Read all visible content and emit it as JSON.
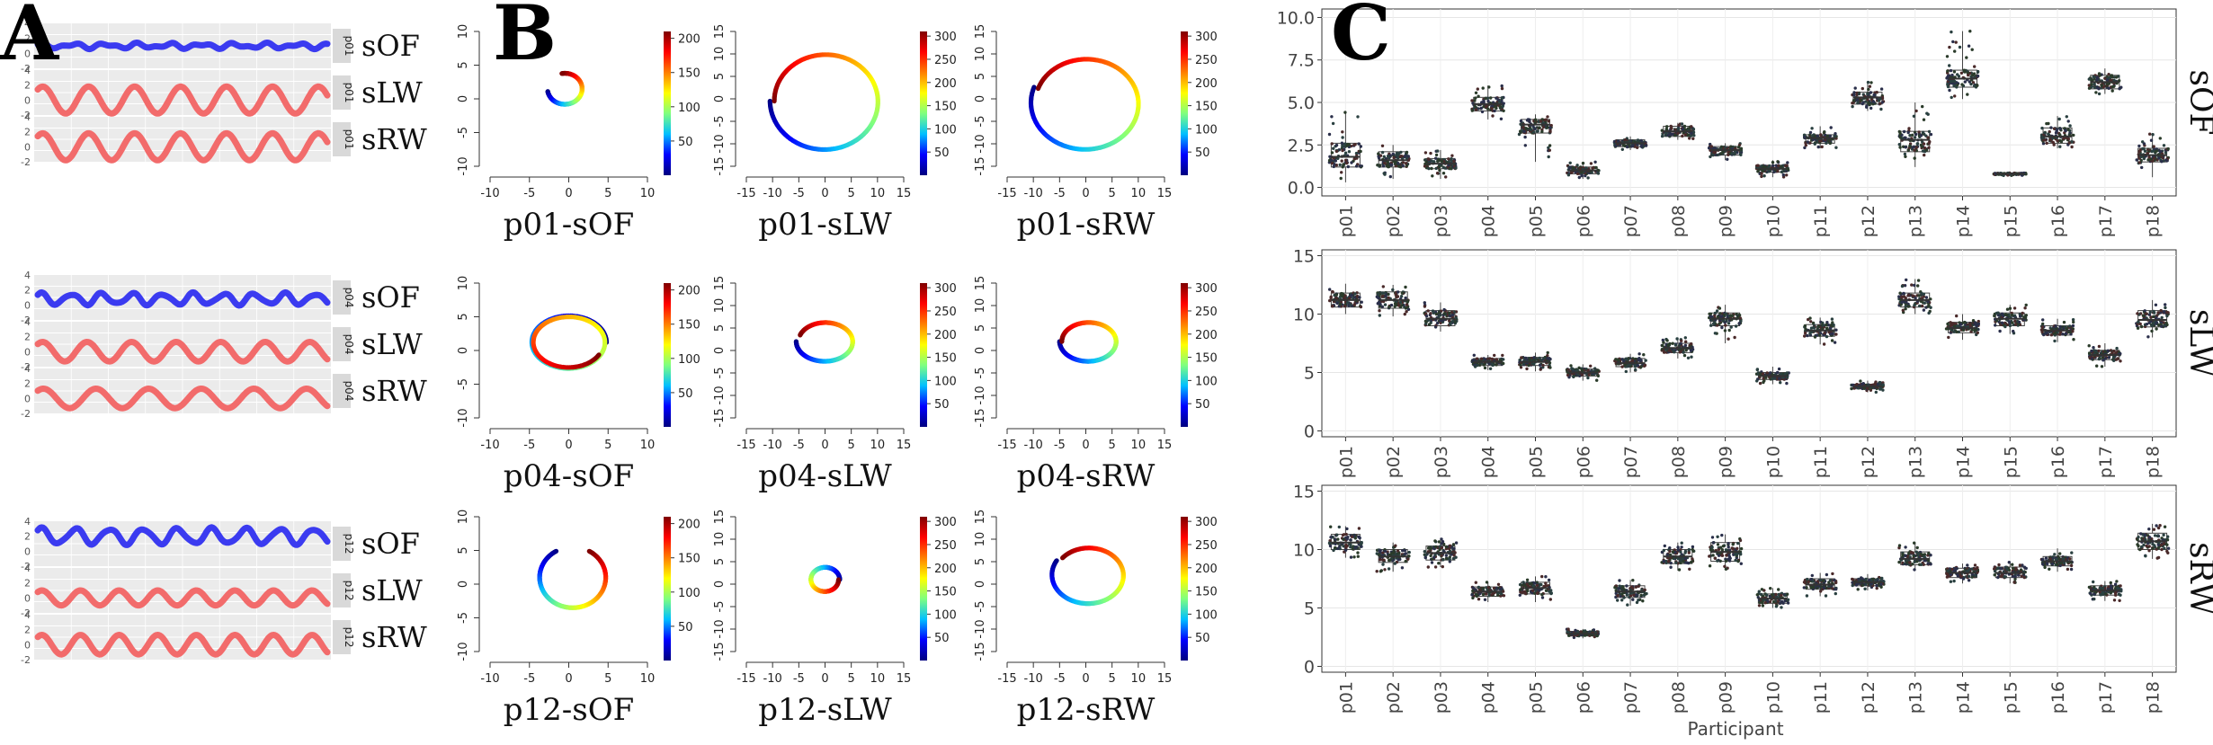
{
  "chart_data": [
    {
      "panel": "A",
      "type": "line",
      "participants": [
        "p01",
        "p04",
        "p12"
      ],
      "channels": [
        "sOF",
        "sLW",
        "sRW"
      ],
      "colors": {
        "sOF": "#3b3bf0",
        "sLW": "#f26b6b",
        "sRW": "#f26b6b"
      },
      "ylim": [
        -2,
        4
      ],
      "yticks": [
        "4",
        "2",
        "0",
        "-2"
      ],
      "series": [
        {
          "participant": "p01",
          "channel": "sOF",
          "amplitude": 0.25,
          "cycles": 9,
          "offset": 1
        },
        {
          "participant": "p01",
          "channel": "sLW",
          "amplitude": 1.8,
          "cycles": 6.3,
          "offset": 0
        },
        {
          "participant": "p01",
          "channel": "sRW",
          "amplitude": 1.8,
          "cycles": 6.3,
          "offset": 0
        },
        {
          "participant": "p04",
          "channel": "sOF",
          "amplitude": 0.7,
          "cycles": 9.5,
          "offset": 0.8
        },
        {
          "participant": "p04",
          "channel": "sLW",
          "amplitude": 1.3,
          "cycles": 6.5,
          "offset": 0
        },
        {
          "participant": "p04",
          "channel": "sRW",
          "amplitude": 1.3,
          "cycles": 5.5,
          "offset": 0
        },
        {
          "participant": "p12",
          "channel": "sOF",
          "amplitude": 1.0,
          "cycles": 8.5,
          "offset": 2
        },
        {
          "participant": "p12",
          "channel": "sLW",
          "amplitude": 1.0,
          "cycles": 7.5,
          "offset": 0
        },
        {
          "participant": "p12",
          "channel": "sRW",
          "amplitude": 1.3,
          "cycles": 7.5,
          "offset": 0
        }
      ]
    },
    {
      "panel": "B",
      "type": "scatter",
      "colormap": [
        "#00007f",
        "#0000ff",
        "#00bfff",
        "#7fff7f",
        "#ffff00",
        "#ff7f00",
        "#ff0000",
        "#7f0000"
      ],
      "plots": [
        {
          "label": "p01-sOF",
          "xlim": [
            -10,
            10
          ],
          "ylim": [
            -10,
            10
          ],
          "xticks": [
            -10,
            -5,
            0,
            5,
            10
          ],
          "yticks": [
            -10,
            -5,
            0,
            5,
            10
          ],
          "cbar": [
            50,
            100,
            150,
            200
          ],
          "cmax": 210,
          "shape": "arc",
          "cx": -0.5,
          "cy": 1.5,
          "rx": 2.2,
          "ry": 2.3,
          "t0": 190,
          "t1": 460
        },
        {
          "label": "p01-sLW",
          "xlim": [
            -15,
            15
          ],
          "ylim": [
            -15,
            15
          ],
          "xticks": [
            -15,
            -10,
            -5,
            0,
            5,
            10,
            15
          ],
          "yticks": [
            -15,
            -10,
            -5,
            0,
            5,
            10,
            15
          ],
          "cbar": [
            50,
            100,
            150,
            200,
            250,
            300
          ],
          "cmax": 310,
          "shape": "ring",
          "cx": 0,
          "cy": -0.5,
          "rx": 10.5,
          "ry": 11,
          "t0": 180,
          "t1": 540
        },
        {
          "label": "p01-sRW",
          "xlim": [
            -15,
            15
          ],
          "ylim": [
            -15,
            15
          ],
          "xticks": [
            -15,
            -10,
            -5,
            0,
            5,
            10,
            15
          ],
          "yticks": [
            -15,
            -10,
            -5,
            0,
            5,
            10,
            15
          ],
          "cbar": [
            50,
            100,
            150,
            200,
            250,
            300
          ],
          "cmax": 310,
          "shape": "ring",
          "cx": 0,
          "cy": -1,
          "rx": 10.5,
          "ry": 10.5,
          "t0": 160,
          "t1": 520
        },
        {
          "label": "p04-sOF",
          "xlim": [
            -10,
            10
          ],
          "ylim": [
            -10,
            10
          ],
          "xticks": [
            -10,
            -5,
            0,
            5,
            10
          ],
          "yticks": [
            -10,
            -5,
            0,
            5,
            10
          ],
          "cbar": [
            50,
            100,
            150,
            200
          ],
          "cmax": 210,
          "shape": "ring",
          "cx": 0,
          "cy": 1.2,
          "rx": 4.8,
          "ry": 4.0,
          "t0": 0,
          "t1": 690
        },
        {
          "label": "p04-sLW",
          "xlim": [
            -15,
            15
          ],
          "ylim": [
            -15,
            15
          ],
          "xticks": [
            -15,
            -10,
            -5,
            0,
            5,
            10,
            15
          ],
          "yticks": [
            -15,
            -10,
            -5,
            0,
            5,
            10,
            15
          ],
          "cbar": [
            50,
            100,
            150,
            200,
            250,
            300
          ],
          "cmax": 310,
          "shape": "ring",
          "cx": 0,
          "cy": 2,
          "rx": 5.5,
          "ry": 4.5,
          "t0": 180,
          "t1": 520
        },
        {
          "label": "p04-sRW",
          "xlim": [
            -15,
            15
          ],
          "ylim": [
            -15,
            15
          ],
          "xticks": [
            -15,
            -10,
            -5,
            0,
            5,
            10,
            15
          ],
          "yticks": [
            -15,
            -10,
            -5,
            0,
            5,
            10,
            15
          ],
          "cbar": [
            50,
            100,
            150,
            200,
            250,
            300
          ],
          "cmax": 310,
          "shape": "ring",
          "cx": 0.5,
          "cy": 2,
          "rx": 5.5,
          "ry": 4.5,
          "t0": 180,
          "t1": 540
        },
        {
          "label": "p12-sOF",
          "xlim": [
            -10,
            10
          ],
          "ylim": [
            -10,
            10
          ],
          "xticks": [
            -10,
            -5,
            0,
            5,
            10
          ],
          "yticks": [
            -10,
            -5,
            0,
            5,
            10
          ],
          "cbar": [
            50,
            100,
            150,
            200
          ],
          "cmax": 210,
          "shape": "arc",
          "cx": 0.5,
          "cy": 1.0,
          "rx": 4.2,
          "ry": 4.5,
          "t0": 120,
          "t1": 420
        },
        {
          "label": "p12-sLW",
          "xlim": [
            -15,
            15
          ],
          "ylim": [
            -15,
            15
          ],
          "xticks": [
            -15,
            -10,
            -5,
            0,
            5,
            10,
            15
          ],
          "yticks": [
            -15,
            -10,
            -5,
            0,
            5,
            10,
            15
          ],
          "cbar": [
            50,
            100,
            150,
            200,
            250,
            300
          ],
          "cmax": 310,
          "shape": "ring",
          "cx": 0,
          "cy": 1,
          "rx": 2.8,
          "ry": 2.8,
          "t0": 0,
          "t1": 360
        },
        {
          "label": "p12-sRW",
          "xlim": [
            -15,
            15
          ],
          "ylim": [
            -15,
            15
          ],
          "xticks": [
            -15,
            -10,
            -5,
            0,
            5,
            10,
            15
          ],
          "yticks": [
            -15,
            -10,
            -5,
            0,
            5,
            10,
            15
          ],
          "cbar": [
            50,
            100,
            150,
            200,
            250,
            300
          ],
          "cmax": 310,
          "shape": "ring",
          "cx": 0.5,
          "cy": 2,
          "rx": 7,
          "ry": 6.5,
          "t0": 150,
          "t1": 500
        }
      ]
    },
    {
      "panel": "C",
      "type": "scatter",
      "xlabel": "Participant",
      "categories": [
        "p01",
        "p02",
        "p03",
        "p04",
        "p05",
        "p06",
        "p07",
        "p08",
        "p09",
        "p10",
        "p11",
        "p12",
        "p13",
        "p14",
        "p15",
        "p16",
        "p17",
        "p18"
      ],
      "series": [
        {
          "name": "sOF",
          "yticks": [
            "0.0",
            "2.5",
            "5.0",
            "7.5",
            "10.0"
          ],
          "ylim": [
            -0.5,
            10.5
          ],
          "medians": [
            1.8,
            1.6,
            1.4,
            4.9,
            3.7,
            1.0,
            2.6,
            3.3,
            2.2,
            1.1,
            2.9,
            5.3,
            2.8,
            6.4,
            0.8,
            3.0,
            6.2,
            1.9
          ],
          "q1": [
            1.2,
            1.2,
            1.1,
            4.5,
            3.2,
            0.8,
            2.4,
            3.0,
            1.9,
            0.9,
            2.6,
            4.9,
            2.1,
            5.9,
            0.75,
            2.6,
            5.8,
            1.5
          ],
          "q3": [
            2.6,
            2.1,
            1.7,
            5.3,
            4.0,
            1.2,
            2.8,
            3.6,
            2.4,
            1.3,
            3.1,
            5.6,
            3.3,
            6.9,
            0.85,
            3.5,
            6.6,
            2.3
          ],
          "mins": [
            0.3,
            0.5,
            0.5,
            4.0,
            1.5,
            0.5,
            2.2,
            2.8,
            1.6,
            0.6,
            2.3,
            4.5,
            1.2,
            5.2,
            0.7,
            2.3,
            5.5,
            0.6
          ],
          "maxs": [
            4.5,
            2.5,
            2.2,
            6.0,
            4.3,
            1.5,
            3.0,
            3.8,
            2.6,
            1.6,
            3.6,
            6.2,
            5.0,
            9.2,
            0.9,
            4.2,
            7.0,
            3.2
          ]
        },
        {
          "name": "sLW",
          "yticks": [
            "0",
            "5",
            "10",
            "15"
          ],
          "ylim": [
            -0.5,
            15.5
          ],
          "medians": [
            11.2,
            11.2,
            9.6,
            5.9,
            5.9,
            5.0,
            5.8,
            7.1,
            9.6,
            4.7,
            8.6,
            3.8,
            11.2,
            8.8,
            9.6,
            8.6,
            6.5,
            9.5
          ],
          "q1": [
            10.6,
            10.5,
            9.0,
            5.6,
            5.6,
            4.7,
            5.5,
            6.7,
            9.0,
            4.4,
            8.1,
            3.6,
            10.6,
            8.4,
            9.0,
            8.2,
            6.1,
            8.9
          ],
          "q3": [
            11.8,
            11.9,
            10.3,
            6.2,
            6.3,
            5.3,
            6.2,
            7.5,
            10.1,
            5.0,
            9.1,
            4.0,
            11.8,
            9.3,
            10.1,
            9.0,
            6.9,
            10.3
          ],
          "mins": [
            10.0,
            9.8,
            8.5,
            5.2,
            5.1,
            4.3,
            5.0,
            6.2,
            7.5,
            4.0,
            7.4,
            3.3,
            10.0,
            7.8,
            8.3,
            7.6,
            5.5,
            8.0
          ],
          "maxs": [
            12.6,
            12.5,
            11.0,
            6.5,
            6.7,
            5.7,
            6.6,
            8.0,
            10.8,
            5.5,
            9.7,
            4.3,
            13.0,
            10.0,
            10.8,
            9.6,
            7.5,
            11.2
          ]
        },
        {
          "name": "sRW",
          "yticks": [
            "0",
            "5",
            "10",
            "15"
          ],
          "ylim": [
            -0.5,
            15.5
          ],
          "medians": [
            10.6,
            9.4,
            9.7,
            6.4,
            6.7,
            2.8,
            6.4,
            9.4,
            9.8,
            5.8,
            7.0,
            7.2,
            9.2,
            8.0,
            8.0,
            9.0,
            6.5,
            10.7
          ],
          "q1": [
            10.0,
            8.9,
            9.1,
            6.0,
            6.2,
            2.6,
            5.9,
            8.8,
            9.0,
            5.4,
            6.6,
            6.9,
            8.7,
            7.6,
            7.6,
            8.6,
            6.1,
            10.0
          ],
          "q3": [
            11.3,
            10.0,
            10.3,
            6.8,
            7.2,
            3.0,
            6.9,
            10.0,
            10.6,
            6.2,
            7.5,
            7.5,
            9.8,
            8.4,
            8.5,
            9.4,
            6.9,
            11.4
          ],
          "mins": [
            9.3,
            8.1,
            8.5,
            5.5,
            5.5,
            2.4,
            5.2,
            8.2,
            8.3,
            5.0,
            6.0,
            6.5,
            8.2,
            7.1,
            7.1,
            8.1,
            5.6,
            9.2
          ],
          "maxs": [
            12.0,
            10.6,
            11.0,
            7.2,
            7.7,
            3.2,
            7.4,
            10.6,
            11.3,
            6.7,
            8.0,
            7.9,
            10.6,
            8.8,
            9.0,
            10.1,
            7.3,
            12.2
          ]
        }
      ]
    }
  ],
  "panel_letters": [
    "A",
    "B",
    "C"
  ]
}
